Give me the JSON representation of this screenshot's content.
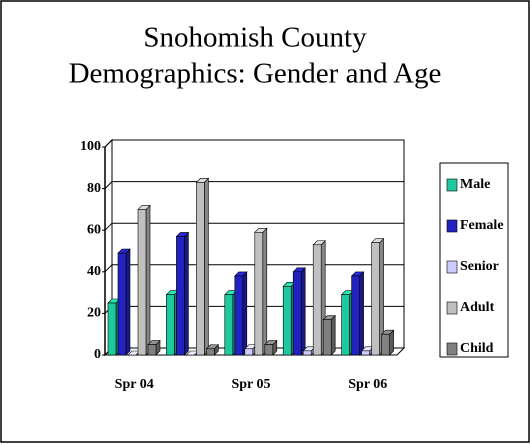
{
  "chart_data": {
    "type": "bar3d",
    "title": [
      "Snohomish County",
      "Demographics: Gender and Age"
    ],
    "categories": [
      "Spr 04",
      null,
      "Spr 05",
      null,
      "Spr 06"
    ],
    "series": [
      {
        "name": "Male",
        "color": "#1fc9a0",
        "values": [
          25,
          29,
          29,
          33,
          29
        ]
      },
      {
        "name": "Female",
        "color": "#2222c0",
        "values": [
          49,
          57,
          38,
          40,
          38
        ]
      },
      {
        "name": "Senior",
        "color": "#ccccff",
        "values": [
          0,
          0,
          3,
          2,
          2
        ]
      },
      {
        "name": "Adult",
        "color": "#c0c0c0",
        "values": [
          70,
          83,
          59,
          53,
          54
        ]
      },
      {
        "name": "Child",
        "color": "#808080",
        "values": [
          5,
          3,
          5,
          17,
          10
        ]
      }
    ],
    "ylim": [
      0,
      100
    ],
    "yticks": [
      0,
      20,
      40,
      60,
      80,
      100
    ],
    "grid": true,
    "legend": "right"
  }
}
